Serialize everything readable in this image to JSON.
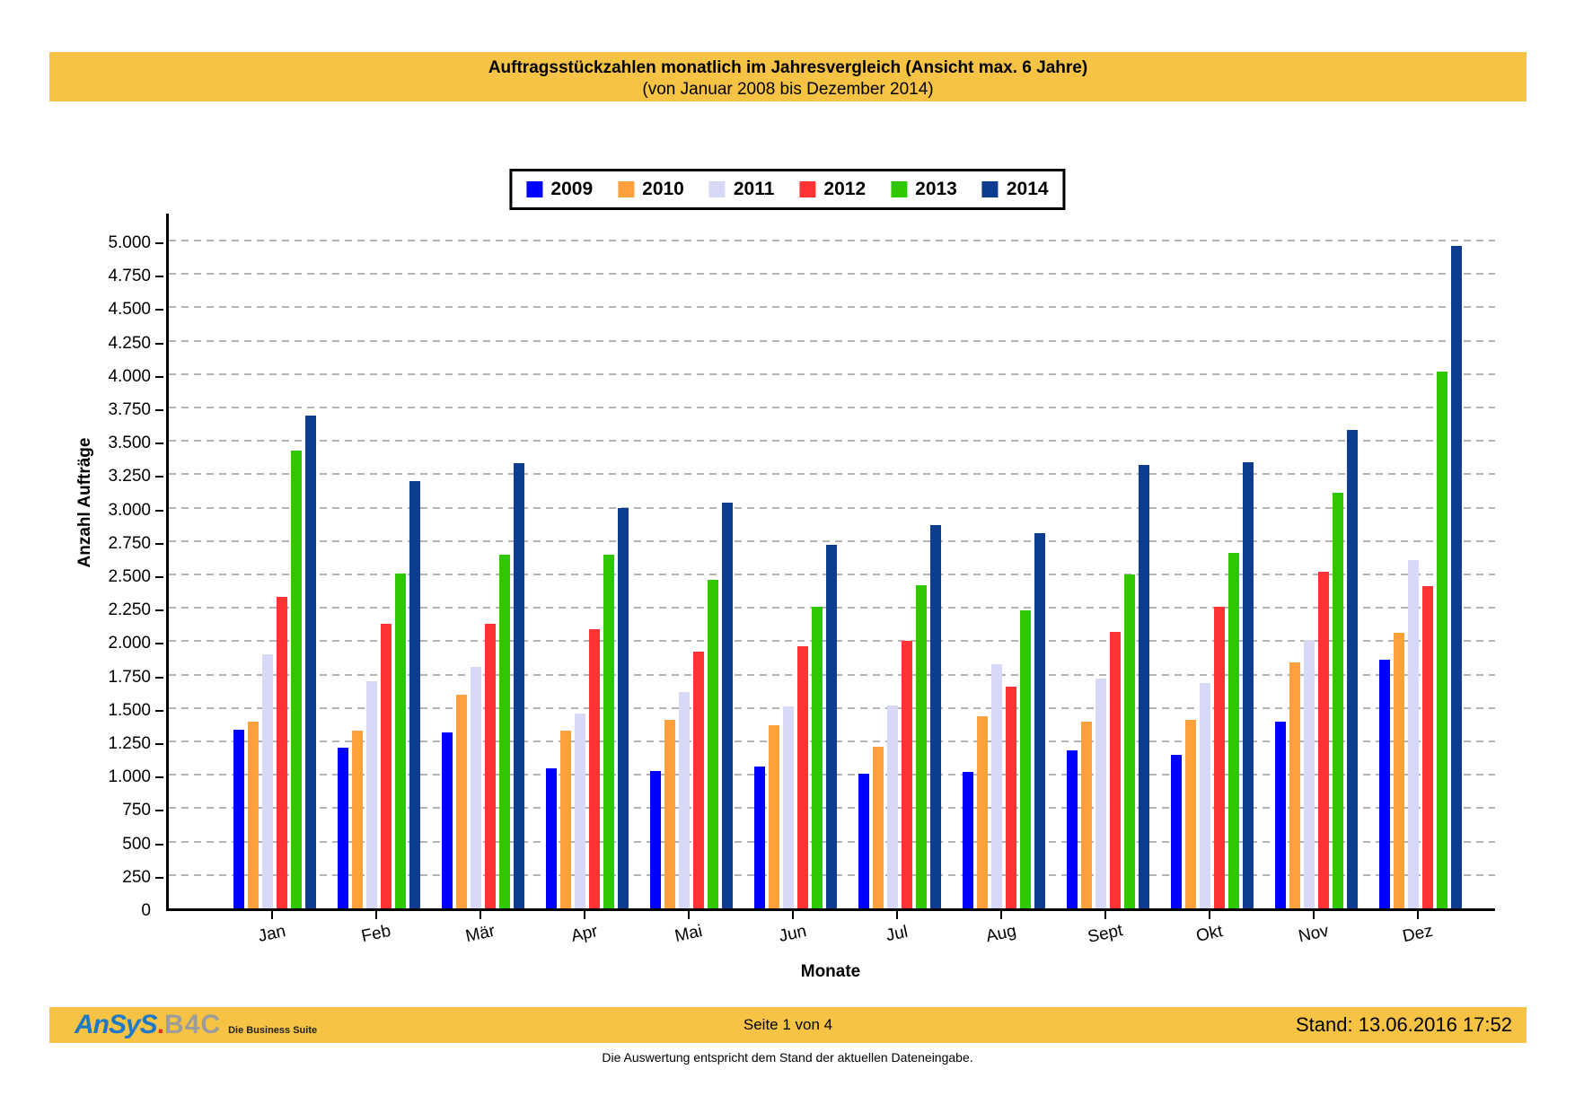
{
  "header": {
    "title_line1": "Auftragsstückzahlen monatlich im Jahresvergleich (Ansicht max. 6 Jahre)",
    "title_line2": "(von Januar 2008 bis Dezember 2014)"
  },
  "chart_data": {
    "type": "bar",
    "title": "Auftragsstückzahlen monatlich im Jahresvergleich (Ansicht max. 6 Jahre)",
    "subtitle": "(von Januar 2008 bis Dezember 2014)",
    "xlabel": "Monate",
    "ylabel": "Anzahl Aufträge",
    "ylim": [
      0,
      5000
    ],
    "grid": "horizontal-dashed",
    "legend_position": "top-center",
    "categories": [
      "Jan",
      "Feb",
      "Mär",
      "Apr",
      "Mai",
      "Jun",
      "Jul",
      "Aug",
      "Sept",
      "Okt",
      "Nov",
      "Dez"
    ],
    "y_ticks": {
      "step": 250,
      "max": 5000,
      "labels": [
        "0",
        "250",
        "500",
        "750",
        "1.000",
        "1.250",
        "1.500",
        "1.750",
        "2.000",
        "2.250",
        "2.500",
        "2.750",
        "3.000",
        "3.250",
        "3.500",
        "3.750",
        "4.000",
        "4.250",
        "4.500",
        "4.750",
        "5.000"
      ]
    },
    "series": [
      {
        "name": "2009",
        "color": "#0000FF",
        "values": [
          1340,
          1200,
          1320,
          1050,
          1030,
          1060,
          1010,
          1020,
          1180,
          1150,
          1400,
          1860
        ]
      },
      {
        "name": "2010",
        "color": "#FFA03C",
        "values": [
          1400,
          1330,
          1600,
          1330,
          1410,
          1370,
          1210,
          1440,
          1400,
          1410,
          1840,
          2060
        ]
      },
      {
        "name": "2011",
        "color": "#D7D9F7",
        "values": [
          1900,
          1700,
          1810,
          1460,
          1620,
          1510,
          1520,
          1830,
          1720,
          1690,
          2010,
          2610
        ]
      },
      {
        "name": "2012",
        "color": "#FF3333",
        "values": [
          2330,
          2130,
          2130,
          2090,
          1920,
          1960,
          2000,
          1660,
          2070,
          2260,
          2520,
          2410
        ]
      },
      {
        "name": "2013",
        "color": "#2FC800",
        "values": [
          3430,
          2510,
          2650,
          2650,
          2460,
          2260,
          2420,
          2230,
          2500,
          2660,
          3110,
          4020
        ]
      },
      {
        "name": "2014",
        "color": "#0C3D8E",
        "values": [
          3690,
          3200,
          3330,
          3000,
          3040,
          2720,
          2870,
          2810,
          3320,
          3340,
          3580,
          4960
        ]
      }
    ]
  },
  "footer": {
    "logo_ansys": "AnSyS",
    "logo_dot": ".",
    "logo_b4c": "B4C",
    "logo_tagline": "Die Business Suite",
    "page_info": "Seite 1 von 4",
    "stand_info": "Stand: 13.06.2016  17:52",
    "note": "Die Auswertung entspricht dem Stand der aktuellen Dateneingabe."
  },
  "colors": {
    "banner": "#F6C344",
    "gridline": "#B3B3B3",
    "axis": "#000000",
    "logo_blue": "#1E78C8",
    "logo_red": "#E03228",
    "logo_gray": "#9C9C9C"
  }
}
